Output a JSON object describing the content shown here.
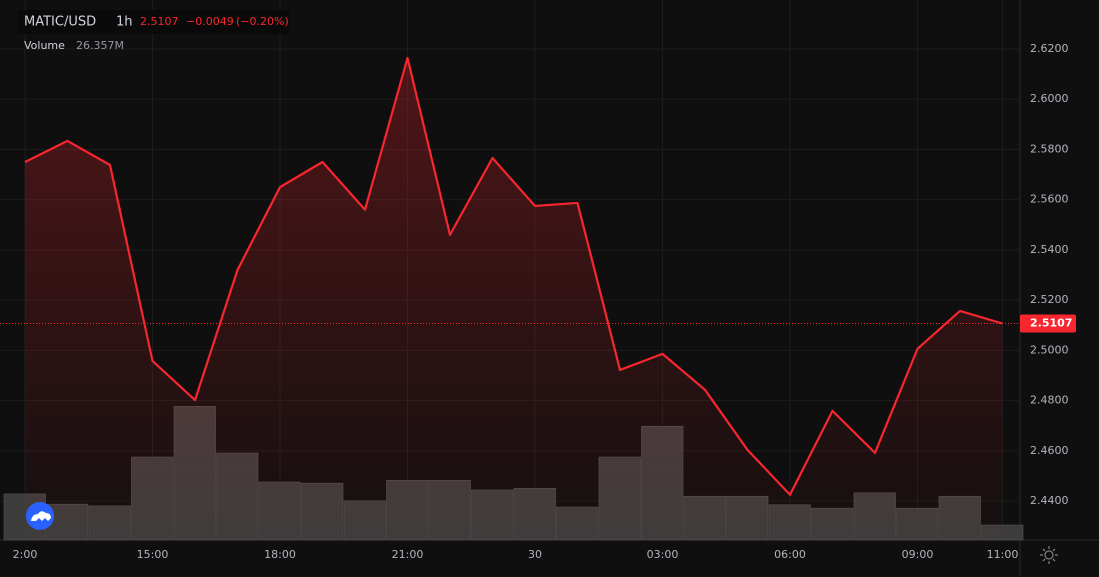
{
  "chart_data": {
    "type": "line",
    "title": "MATIC/USD",
    "interval": "1h",
    "last_label": "2.5107",
    "change_label": "−0.0049",
    "change_pct_label": "(−0.20%)",
    "categories": [
      "2:00",
      null,
      null,
      "15:00",
      null,
      null,
      "18:00",
      null,
      null,
      "21:00",
      null,
      null,
      "30",
      null,
      null,
      "03:00",
      null,
      null,
      "06:00",
      null,
      null,
      "09:00",
      null,
      "11:00"
    ],
    "values": [
      2.575,
      2.5834,
      2.5738,
      2.4958,
      2.4802,
      2.532,
      2.565,
      2.575,
      2.556,
      2.6164,
      2.546,
      2.5766,
      2.5575,
      2.5587,
      2.4922,
      2.4986,
      2.4843,
      2.4604,
      2.4425,
      2.4759,
      2.4592,
      2.5006,
      2.5157,
      2.5107
    ],
    "color": "#f7262f",
    "ylim": [
      2.4245,
      2.6395
    ],
    "yticks": [
      {
        "value": 2.44,
        "label": "2.4400"
      },
      {
        "value": 2.46,
        "label": "2.4600"
      },
      {
        "value": 2.48,
        "label": "2.4800"
      },
      {
        "value": 2.5,
        "label": "2.5000"
      },
      {
        "value": 2.52,
        "label": "2.5200"
      },
      {
        "value": 2.54,
        "label": "2.5400"
      },
      {
        "value": 2.56,
        "label": "2.5600"
      },
      {
        "value": 2.58,
        "label": "2.5800"
      },
      {
        "value": 2.6,
        "label": "2.6000"
      },
      {
        "value": 2.62,
        "label": "2.6200"
      }
    ],
    "grid": true,
    "volume": {
      "name": "Volume",
      "last_label": "26.357M",
      "values": [
        81,
        63,
        60,
        146,
        235,
        153,
        102,
        100,
        69,
        105,
        105,
        88,
        91,
        58,
        146,
        200,
        77,
        77,
        62,
        56,
        83,
        56,
        77,
        26.357
      ],
      "color": "#3c3c3c",
      "ylim": [
        0,
        950
      ]
    }
  }
}
